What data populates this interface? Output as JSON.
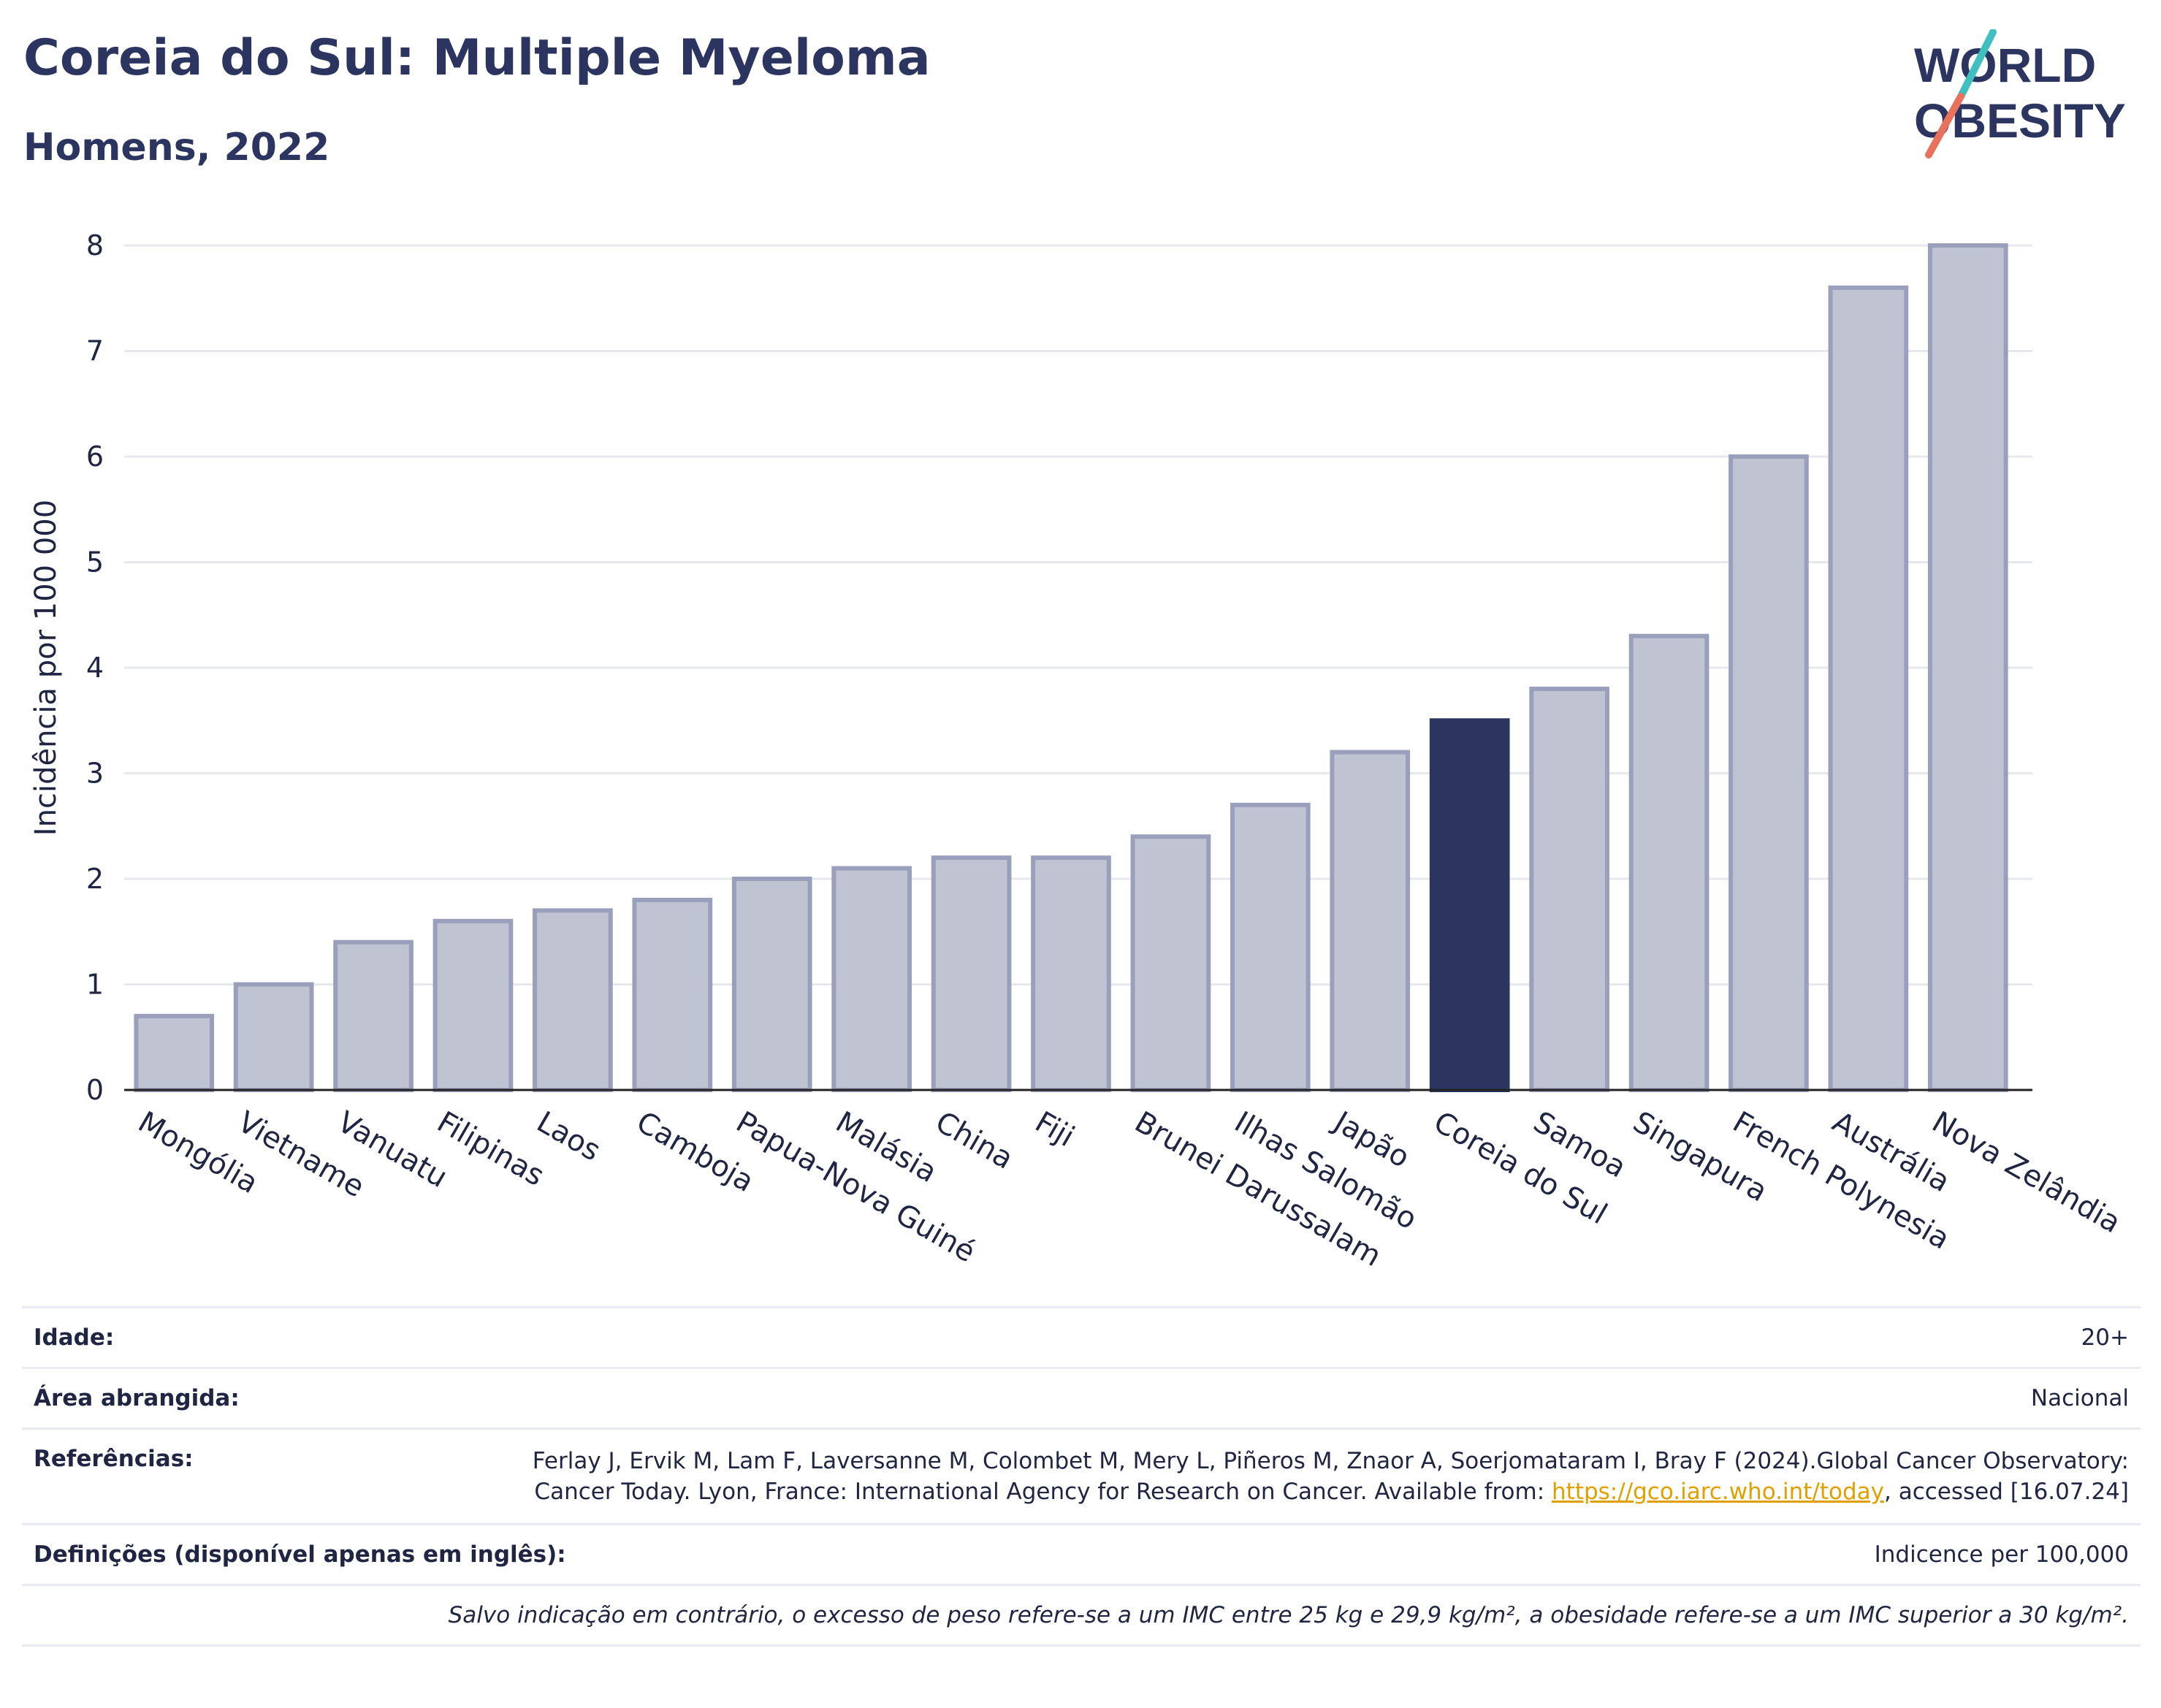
{
  "header": {
    "title": "Coreia do Sul: Multiple Myeloma",
    "subtitle": "Homens, 2022"
  },
  "logo": {
    "line1": "WORLD",
    "line2": "OBESITY",
    "accent_colors": [
      "#3fbfbf",
      "#e8725c"
    ]
  },
  "colors": {
    "bar_default": "#c0c3d1",
    "bar_outline": "#9a9fbb",
    "bar_highlight": "#2b3560",
    "grid": "#e6e8ee",
    "link": "#e0a100"
  },
  "chart_data": {
    "type": "bar",
    "title": "",
    "xlabel": "",
    "ylabel": "Incidência por 100 000",
    "ylim": [
      0,
      8
    ],
    "yticks": [
      0,
      1,
      2,
      3,
      4,
      5,
      6,
      7,
      8
    ],
    "grid": true,
    "highlight": "Coreia do Sul",
    "categories": [
      "Mongólia",
      "Vietname",
      "Vanuatu",
      "Filipinas",
      "Laos",
      "Camboja",
      "Papua-Nova Guiné",
      "Malásia",
      "China",
      "Fiji",
      "Brunei Darussalam",
      "Ilhas Salomão",
      "Japão",
      "Coreia do Sul",
      "Samoa",
      "Singapura",
      "French Polynesia",
      "Austrália",
      "Nova Zelândia"
    ],
    "values": [
      0.7,
      1.0,
      1.4,
      1.6,
      1.7,
      1.8,
      2.0,
      2.1,
      2.2,
      2.2,
      2.4,
      2.7,
      3.2,
      3.5,
      3.8,
      4.3,
      6.0,
      7.6,
      8.0
    ]
  },
  "info": {
    "age_label": "Idade:",
    "age_value": "20+",
    "area_label": "Área abrangida:",
    "area_value": "Nacional",
    "ref_label": "Referências:",
    "ref_text_1": "Ferlay J, Ervik M, Lam F, Laversanne M, Colombet M, Mery L, Piñeros M, Znaor A, Soerjomataram I, Bray F (2024).Global Cancer Observatory: Cancer Today. Lyon, France: International Agency for Research on Cancer. Available from: ",
    "ref_link": "https://gco.iarc.who.int/today",
    "ref_text_2": ", accessed [16.07.24]",
    "def_label": "Definições (disponível apenas em inglês):",
    "def_value": "Indicence per 100,000",
    "note": "Salvo indicação em contrário, o excesso de peso refere-se a um IMC entre 25 kg e 29,9 kg/m², a obesidade refere-se a um IMC superior a 30 kg/m²."
  }
}
